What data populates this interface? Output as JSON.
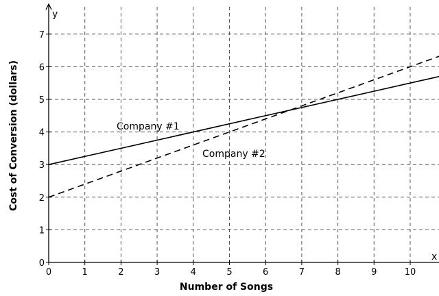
{
  "chart_data": {
    "type": "line",
    "title": "",
    "xlabel": "Number of Songs",
    "ylabel": "Cost of Conversion (dollars)",
    "x_axis_letter": "x",
    "y_axis_letter": "y",
    "xlim": [
      0,
      10.8
    ],
    "ylim": [
      0,
      7.5
    ],
    "x_ticks": [
      0,
      1,
      2,
      3,
      4,
      5,
      6,
      7,
      8,
      9,
      10
    ],
    "y_ticks": [
      0,
      1,
      2,
      3,
      4,
      5,
      6,
      7
    ],
    "grid": true,
    "grid_style": "dashed",
    "series": [
      {
        "name": "Company #1",
        "line_style": "solid",
        "x": [
          0,
          10.8
        ],
        "y": [
          3,
          5.7
        ]
      },
      {
        "name": "Company #2",
        "line_style": "dashed",
        "x": [
          0,
          10.8
        ],
        "y": [
          2,
          6.32
        ]
      }
    ],
    "colors": {
      "line": "#000000",
      "grid": "#555555",
      "background": "#ffffff"
    }
  }
}
